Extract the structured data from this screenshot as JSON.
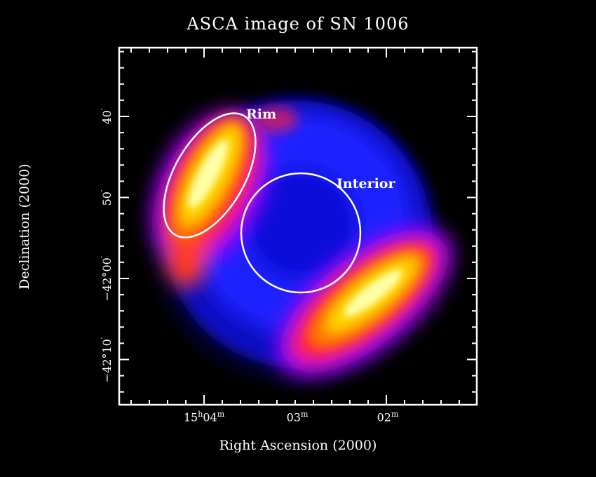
{
  "title": "ASCA image of SN 1006",
  "xlabel": "Right Ascension (2000)",
  "ylabel": "Declination (2000)",
  "xticks": [
    {
      "h": "15",
      "hu": "h",
      "m": "04",
      "mu": "m"
    },
    {
      "h": "",
      "hu": "",
      "m": "03",
      "mu": "m"
    },
    {
      "h": "",
      "hu": "",
      "m": "02",
      "mu": "m"
    }
  ],
  "yticks": [
    {
      "deg": "",
      "min": "40",
      "unit": "′"
    },
    {
      "deg": "",
      "min": "50",
      "unit": "′"
    },
    {
      "deg": "−42°",
      "min": "00",
      "unit": "′"
    },
    {
      "deg": "−42°",
      "min": "10",
      "unit": "′"
    }
  ],
  "annotations": {
    "rim": "Rim",
    "interior": "Interior"
  },
  "colors": {
    "background": "#000000",
    "frame": "#ffffff",
    "colormap": [
      "#000000",
      "#0000cc",
      "#1a1aff",
      "#9900ff",
      "#ff0044",
      "#ff6600",
      "#ffcc00",
      "#ffff88",
      "#ffffff"
    ]
  }
}
